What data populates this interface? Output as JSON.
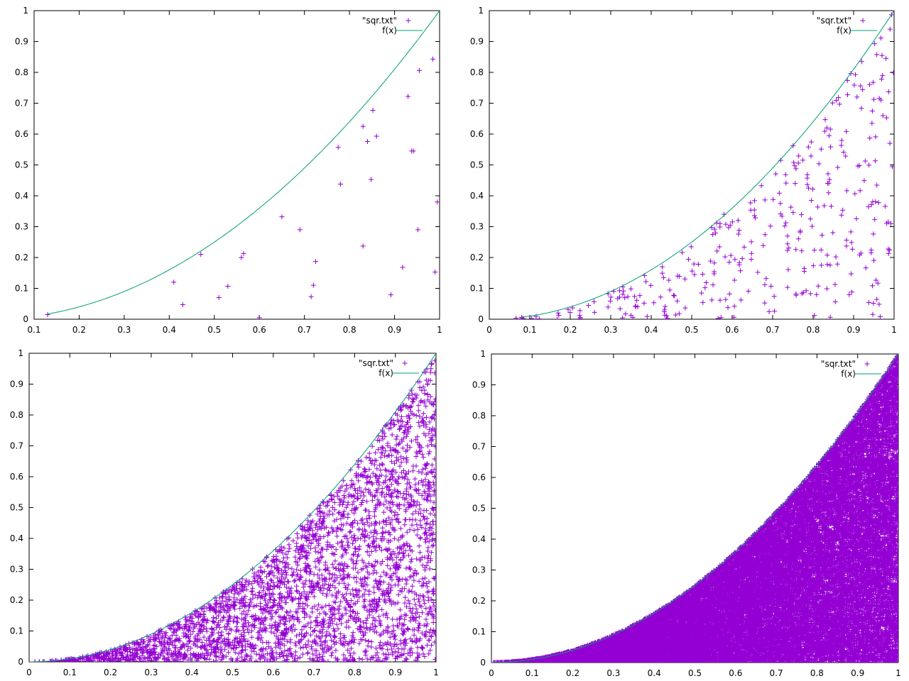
{
  "colors": {
    "points": "#9400d3",
    "curve": "#009e73"
  },
  "chart_data": [
    {
      "type": "scatter",
      "xlim": [
        0.1,
        1
      ],
      "ylim": [
        0,
        1
      ],
      "xticks": [
        "0.1",
        "0.2",
        "0.3",
        "0.4",
        "0.5",
        "0.6",
        "0.7",
        "0.8",
        "0.9",
        "1"
      ],
      "yticks": [
        "0",
        "0.1",
        "0.2",
        "0.3",
        "0.4",
        "0.5",
        "0.6",
        "0.7",
        "0.8",
        "0.9",
        "1"
      ],
      "legend": {
        "position": "top-right",
        "entries": [
          "\"sqr.txt\"",
          "f(x)"
        ]
      },
      "series": [
        {
          "name": "\"sqr.txt\"",
          "marker": "plus",
          "sample_count": 0,
          "points": [
            [
              0.13,
              0.015
            ],
            [
              0.41,
              0.12
            ],
            [
              0.43,
              0.047
            ],
            [
              0.47,
              0.21
            ],
            [
              0.51,
              0.07
            ],
            [
              0.53,
              0.107
            ],
            [
              0.56,
              0.2
            ],
            [
              0.565,
              0.213
            ],
            [
              0.6,
              0.005
            ],
            [
              0.65,
              0.332
            ],
            [
              0.69,
              0.29
            ],
            [
              0.715,
              0.073
            ],
            [
              0.72,
              0.11
            ],
            [
              0.725,
              0.187
            ],
            [
              0.775,
              0.557
            ],
            [
              0.78,
              0.438
            ],
            [
              0.83,
              0.625
            ],
            [
              0.83,
              0.237
            ],
            [
              0.84,
              0.576
            ],
            [
              0.848,
              0.453
            ],
            [
              0.852,
              0.677
            ],
            [
              0.86,
              0.593
            ],
            [
              0.892,
              0.079
            ],
            [
              0.918,
              0.168
            ],
            [
              0.93,
              0.722
            ],
            [
              0.938,
              0.545
            ],
            [
              0.942,
              0.545
            ],
            [
              0.952,
              0.29
            ],
            [
              0.955,
              0.806
            ],
            [
              0.985,
              0.843
            ],
            [
              0.99,
              0.153
            ],
            [
              0.995,
              0.38
            ]
          ]
        },
        {
          "name": "f(x)",
          "function": "x^2"
        }
      ]
    },
    {
      "type": "scatter",
      "xlim": [
        0,
        1
      ],
      "ylim": [
        0,
        1
      ],
      "xticks": [
        "0",
        "0.1",
        "0.2",
        "0.3",
        "0.4",
        "0.5",
        "0.6",
        "0.7",
        "0.8",
        "0.9",
        "1"
      ],
      "yticks": [
        "0",
        "0.1",
        "0.2",
        "0.3",
        "0.4",
        "0.5",
        "0.6",
        "0.7",
        "0.8",
        "0.9",
        "1"
      ],
      "legend": {
        "position": "top-right",
        "entries": [
          "\"sqr.txt\"",
          "f(x)"
        ]
      },
      "series": [
        {
          "name": "\"sqr.txt\"",
          "marker": "plus",
          "sample_count": 320,
          "points": [
            [
              0.08,
              0.006
            ],
            [
              0.17,
              0.02
            ],
            [
              0.26,
              0.022
            ],
            [
              0.33,
              0.105
            ],
            [
              0.57,
              0.31
            ],
            [
              0.58,
              0.34
            ],
            [
              0.72,
              0.515
            ],
            [
              0.92,
              0.835
            ],
            [
              0.98,
              0.845
            ],
            [
              0.99,
              0.94
            ]
          ]
        },
        {
          "name": "f(x)",
          "function": "x^2"
        }
      ]
    },
    {
      "type": "scatter",
      "xlim": [
        0,
        1
      ],
      "ylim": [
        0,
        1
      ],
      "xticks": [
        "0",
        "0.1",
        "0.2",
        "0.3",
        "0.4",
        "0.5",
        "0.6",
        "0.7",
        "0.8",
        "0.9",
        "1"
      ],
      "yticks": [
        "0",
        "0.1",
        "0.2",
        "0.3",
        "0.4",
        "0.5",
        "0.6",
        "0.7",
        "0.8",
        "0.9",
        "1"
      ],
      "legend": {
        "position": "top-right",
        "entries": [
          "\"sqr.txt\"",
          "f(x)"
        ]
      },
      "series": [
        {
          "name": "\"sqr.txt\"",
          "marker": "plus",
          "sample_count": 3200,
          "points": []
        },
        {
          "name": "f(x)",
          "function": "x^2"
        }
      ]
    },
    {
      "type": "scatter",
      "xlim": [
        0,
        1
      ],
      "ylim": [
        0,
        1
      ],
      "xticks": [
        "0",
        "0.1",
        "0.2",
        "0.3",
        "0.4",
        "0.5",
        "0.6",
        "0.7",
        "0.8",
        "0.9",
        "1"
      ],
      "yticks": [
        "0",
        "0.1",
        "0.2",
        "0.3",
        "0.4",
        "0.5",
        "0.6",
        "0.7",
        "0.8",
        "0.9",
        "1"
      ],
      "legend": {
        "position": "top-right",
        "entries": [
          "\"sqr.txt\"",
          "f(x)"
        ]
      },
      "series": [
        {
          "name": "\"sqr.txt\"",
          "marker": "plus",
          "sample_count": 30000,
          "points": []
        },
        {
          "name": "f(x)",
          "function": "x^2"
        }
      ]
    }
  ]
}
